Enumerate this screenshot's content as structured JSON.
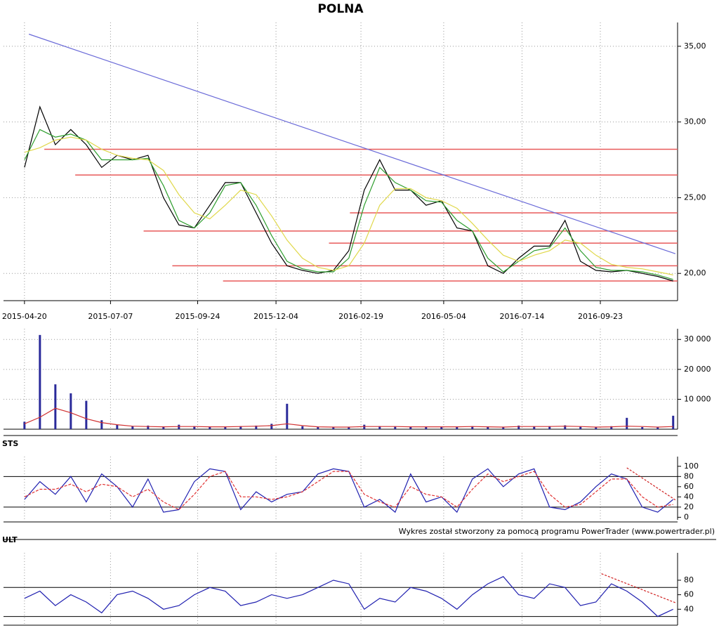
{
  "footer": "Wykres został stworzony za pomocą programu PowerTrader (www.powertrader.pl)",
  "chart_data": [
    {
      "type": "line",
      "title": "POLNA",
      "x": [
        "2015-04-20",
        "2015-05-04",
        "2015-05-18",
        "2015-06-01",
        "2015-06-15",
        "2015-06-29",
        "2015-07-13",
        "2015-07-27",
        "2015-08-10",
        "2015-08-24",
        "2015-09-07",
        "2015-09-21",
        "2015-10-05",
        "2015-10-19",
        "2015-11-02",
        "2015-11-16",
        "2015-11-30",
        "2015-12-14",
        "2015-12-28",
        "2016-01-11",
        "2016-01-25",
        "2016-02-08",
        "2016-02-22",
        "2016-03-07",
        "2016-03-21",
        "2016-04-04",
        "2016-04-18",
        "2016-05-02",
        "2016-05-16",
        "2016-05-30",
        "2016-06-13",
        "2016-06-27",
        "2016-07-11",
        "2016-07-25",
        "2016-08-08",
        "2016-08-22",
        "2016-09-05",
        "2016-09-19",
        "2016-10-03",
        "2016-10-17",
        "2016-10-31",
        "2016-11-14",
        "2016-11-28"
      ],
      "xlim": [
        "2015-04-01",
        "2016-12-02"
      ],
      "xticks": [
        "2015-04-20",
        "2015-07-07",
        "2015-09-24",
        "2015-12-04",
        "2016-02-19",
        "2016-05-04",
        "2016-07-14",
        "2016-09-23"
      ],
      "ylim": [
        18.2,
        36.2
      ],
      "yticks": [
        {
          "value": 20,
          "label": "20,00"
        },
        {
          "value": 25,
          "label": "25,00"
        },
        {
          "value": 30,
          "label": "30,00"
        },
        {
          "value": 35,
          "label": "35,00"
        }
      ],
      "grid": true,
      "series": [
        {
          "color": "#000000",
          "values": [
            27,
            31,
            28.5,
            29.5,
            28.5,
            27,
            27.8,
            27.5,
            27.8,
            25,
            23.2,
            23,
            24.5,
            26,
            26,
            24,
            22,
            20.5,
            20.2,
            20,
            20.2,
            21.5,
            25.5,
            27.5,
            25.5,
            25.5,
            24.5,
            24.8,
            23,
            22.8,
            20.5,
            20,
            21,
            21.8,
            21.8,
            23.5,
            20.8,
            20.2,
            20.1,
            20.2,
            20,
            19.8,
            19.5
          ]
        },
        {
          "color": "#2e9e2e",
          "values": [
            27.5,
            29.5,
            29,
            29.2,
            28.8,
            27.5,
            27.5,
            27.5,
            27.6,
            25.8,
            23.5,
            23,
            24,
            25.8,
            26,
            24.5,
            22.5,
            20.8,
            20.3,
            20.1,
            20.1,
            21,
            24.5,
            27,
            26,
            25.5,
            24.8,
            24.7,
            23.5,
            22.8,
            21,
            20.1,
            20.8,
            21.5,
            21.7,
            23,
            21.5,
            20.4,
            20.2,
            20.2,
            20.1,
            19.9,
            19.6
          ]
        },
        {
          "color": "#e0d84a",
          "values": [
            28,
            28.3,
            28.8,
            29,
            28.8,
            28.2,
            27.8,
            27.6,
            27.5,
            26.8,
            25.2,
            24,
            23.6,
            24.5,
            25.5,
            25.2,
            23.8,
            22.2,
            21,
            20.4,
            20.2,
            20.5,
            22,
            24.5,
            25.6,
            25.6,
            25,
            24.8,
            24.3,
            23.3,
            22.2,
            21.2,
            20.8,
            21.2,
            21.5,
            22.2,
            22,
            21.2,
            20.6,
            20.4,
            20.3,
            20.1,
            19.9
          ]
        }
      ],
      "trendline": {
        "color": "#6a6ad8",
        "x": [
          "2015-04-24",
          "2016-11-30"
        ],
        "y": [
          35.8,
          21.3
        ]
      },
      "hlines": {
        "color": "#e85a5a",
        "lines": [
          {
            "y": 28.2,
            "x0": "2015-05-08"
          },
          {
            "y": 26.5,
            "x0": "2015-06-05"
          },
          {
            "y": 24.0,
            "x0": "2016-02-09"
          },
          {
            "y": 22.8,
            "x0": "2015-08-06"
          },
          {
            "y": 22.0,
            "x0": "2016-01-21"
          },
          {
            "y": 20.5,
            "x0": "2015-09-01"
          },
          {
            "y": 19.5,
            "x0": "2015-10-17"
          }
        ]
      }
    },
    {
      "type": "bar",
      "ylim": [
        0,
        31700
      ],
      "yticks": [
        {
          "value": 10000,
          "label": "10 000"
        },
        {
          "value": 20000,
          "label": "20 000"
        },
        {
          "value": 30000,
          "label": "30 000"
        }
      ],
      "grid": true,
      "series": [
        {
          "color": "#2a2a9a",
          "values": [
            2500,
            31500,
            15000,
            12000,
            9500,
            3000,
            1500,
            1000,
            1200,
            800,
            1500,
            1000,
            800,
            900,
            1000,
            1200,
            1800,
            8500,
            1000,
            700,
            800,
            600,
            1500,
            1000,
            900,
            800,
            900,
            800,
            900,
            1000,
            700,
            800,
            1200,
            900,
            1000,
            1300,
            800,
            700,
            1000,
            3800,
            700,
            800,
            4500
          ]
        },
        {
          "type": "line",
          "color": "#d03030",
          "values": [
            1800,
            4000,
            7000,
            5500,
            3500,
            2200,
            1500,
            1000,
            900,
            800,
            900,
            900,
            800,
            800,
            900,
            1000,
            1200,
            1800,
            1200,
            800,
            700,
            700,
            900,
            900,
            900,
            800,
            800,
            800,
            800,
            900,
            800,
            700,
            900,
            900,
            900,
            1000,
            900,
            700,
            800,
            1000,
            900,
            700,
            900
          ]
        }
      ]
    },
    {
      "type": "line",
      "title": "STS",
      "ylim": [
        -5,
        108
      ],
      "yticks": [
        0,
        20,
        40,
        60,
        80,
        100
      ],
      "levels": [
        20,
        80
      ],
      "series": [
        {
          "color": "#2020b0",
          "values": [
            35,
            70,
            45,
            80,
            30,
            85,
            60,
            20,
            75,
            10,
            15,
            70,
            95,
            90,
            15,
            50,
            30,
            45,
            50,
            85,
            95,
            90,
            20,
            35,
            10,
            85,
            30,
            40,
            10,
            75,
            95,
            60,
            85,
            95,
            20,
            15,
            30,
            60,
            85,
            75,
            20,
            10,
            35
          ]
        },
        {
          "color": "#e03030",
          "dashed": true,
          "values": [
            40,
            55,
            55,
            65,
            50,
            65,
            60,
            40,
            55,
            30,
            15,
            45,
            80,
            90,
            40,
            40,
            35,
            40,
            50,
            70,
            90,
            90,
            45,
            30,
            20,
            60,
            45,
            40,
            20,
            55,
            85,
            70,
            80,
            90,
            45,
            20,
            25,
            50,
            75,
            75,
            40,
            20,
            25
          ]
        }
      ],
      "trendline": {
        "color": "#d02020",
        "x": [
          "2016-10-17",
          "2016-11-30"
        ],
        "y": [
          97,
          34
        ]
      }
    },
    {
      "type": "line",
      "title": "ULT",
      "ylim": [
        18,
        110
      ],
      "yticks": [
        40,
        60,
        80
      ],
      "levels": [
        30,
        70
      ],
      "series": [
        {
          "color": "#2020b0",
          "values": [
            55,
            65,
            45,
            60,
            50,
            35,
            60,
            65,
            55,
            40,
            45,
            60,
            70,
            65,
            45,
            50,
            60,
            55,
            60,
            70,
            80,
            75,
            40,
            55,
            50,
            70,
            65,
            55,
            40,
            60,
            75,
            85,
            60,
            55,
            75,
            70,
            45,
            50,
            75,
            65,
            50,
            30,
            40
          ]
        }
      ],
      "trendline": {
        "color": "#d02020",
        "x": [
          "2016-09-24",
          "2016-11-30"
        ],
        "y": [
          89,
          49
        ]
      }
    }
  ]
}
